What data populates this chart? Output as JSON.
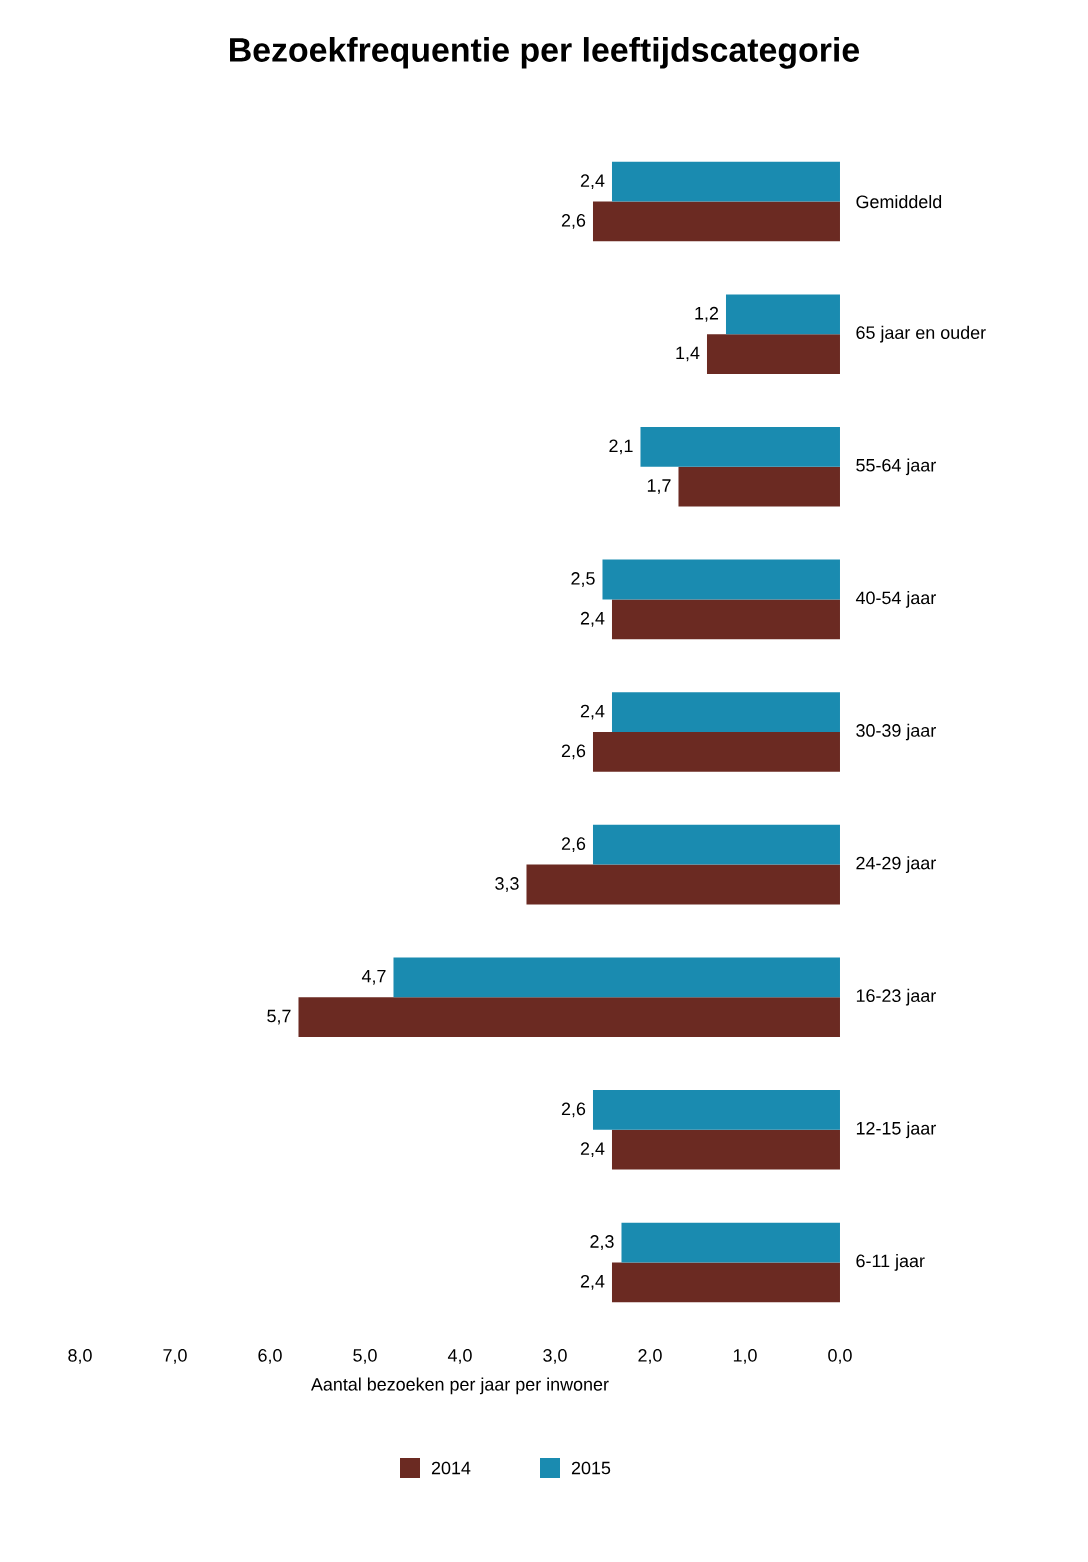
{
  "chart_data": {
    "type": "bar",
    "orientation": "horizontal",
    "title": "Bezoekfrequentie per leeftijdscategorie",
    "xlabel": "Aantal bezoeken per jaar per inwoner",
    "categories": [
      "Gemiddeld",
      "65 jaar en ouder",
      "55-64 jaar",
      "40-54 jaar",
      "30-39 jaar",
      "24-29 jaar",
      "16-23 jaar",
      "12-15 jaar",
      "6-11 jaar"
    ],
    "series": [
      {
        "name": "2014",
        "color": "#6b2a22",
        "values": [
          2.6,
          1.4,
          1.7,
          2.4,
          2.6,
          3.3,
          5.7,
          2.4,
          2.4
        ],
        "value_labels": [
          "2,6",
          "1,4",
          "1,7",
          "2,4",
          "2,6",
          "3,3",
          "5,7",
          "2,4",
          "2,4"
        ]
      },
      {
        "name": "2015",
        "color": "#1a8bb0",
        "values": [
          2.4,
          1.2,
          2.1,
          2.5,
          2.4,
          2.6,
          4.7,
          2.6,
          2.3
        ],
        "value_labels": [
          "2,4",
          "1,2",
          "2,1",
          "2,5",
          "2,4",
          "2,6",
          "4,7",
          "2,6",
          "2,3"
        ]
      }
    ],
    "xlim": [
      8,
      0
    ],
    "xticks": [
      {
        "value": 8,
        "label": "8,0"
      },
      {
        "value": 7,
        "label": "7,0"
      },
      {
        "value": 6,
        "label": "6,0"
      },
      {
        "value": 5,
        "label": "5,0"
      },
      {
        "value": 4,
        "label": "4,0"
      },
      {
        "value": 3,
        "label": "3,0"
      },
      {
        "value": 2,
        "label": "2,0"
      },
      {
        "value": 1,
        "label": "1,0"
      },
      {
        "value": 0,
        "label": "0,0"
      }
    ],
    "grid": false,
    "legend": "bottom"
  }
}
